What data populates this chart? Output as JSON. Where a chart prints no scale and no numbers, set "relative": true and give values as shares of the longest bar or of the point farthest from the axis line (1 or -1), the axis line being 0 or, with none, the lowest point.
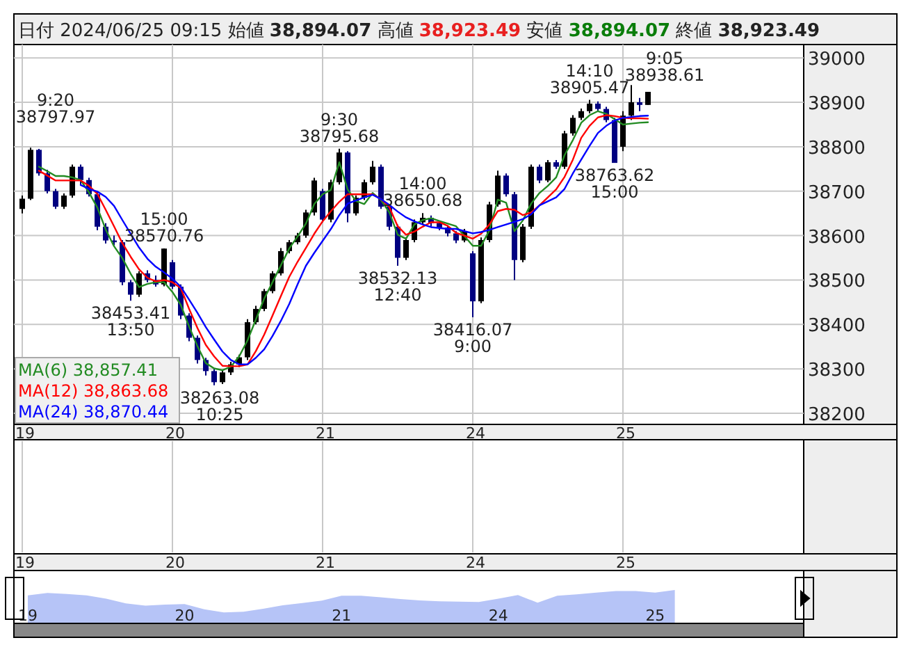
{
  "chart_data": [
    {
      "type": "candlestick",
      "title": "日付 2024/06/25 09:15 始値 **38,894.07** 高値 **38,923.49** 安値 **38,894.07** 終値 **38,923.49**",
      "categories": [
        "19",
        null,
        null,
        null,
        null,
        null,
        null,
        null,
        null,
        null,
        null,
        null,
        null,
        null,
        null,
        null,
        null,
        null,
        "20",
        null,
        null,
        null,
        null,
        null,
        null,
        null,
        null,
        null,
        null,
        null,
        null,
        null,
        null,
        null,
        null,
        null,
        "21",
        null,
        null,
        null,
        null,
        null,
        null,
        null,
        null,
        null,
        null,
        null,
        null,
        null,
        null,
        null,
        null,
        null,
        "24",
        null,
        null,
        null,
        null,
        null,
        null,
        null,
        null,
        null,
        null,
        null,
        null,
        null,
        null,
        null,
        null,
        null,
        "25",
        null,
        null,
        null
      ],
      "ohlc": [
        [
          38660,
          38690,
          38650,
          38683
        ],
        [
          38683,
          38797.97,
          38680,
          38793
        ],
        [
          38793,
          38795,
          38735,
          38740
        ],
        [
          38740,
          38748,
          38695,
          38700
        ],
        [
          38700,
          38705,
          38660,
          38665
        ],
        [
          38665,
          38695,
          38660,
          38690
        ],
        [
          38690,
          38760,
          38685,
          38755
        ],
        [
          38755,
          38760,
          38715,
          38725
        ],
        [
          38725,
          38730,
          38688,
          38693
        ],
        [
          38693,
          38698,
          38612,
          38620
        ],
        [
          38620,
          38628,
          38582,
          38589
        ],
        [
          38589,
          38600,
          38578,
          38585
        ],
        [
          38585,
          38590,
          38488,
          38495
        ],
        [
          38495,
          38500,
          38453.41,
          38467
        ],
        [
          38467,
          38520,
          38462,
          38515
        ],
        [
          38515,
          38522,
          38495,
          38500
        ],
        [
          38500,
          38510,
          38485,
          38490
        ],
        [
          38490,
          38570.76,
          38486,
          38570.76
        ],
        [
          38540,
          38545,
          38480,
          38485
        ],
        [
          38485,
          38490,
          38412,
          38420
        ],
        [
          38420,
          38425,
          38362,
          38370
        ],
        [
          38370,
          38375,
          38312,
          38320
        ],
        [
          38320,
          38325,
          38285,
          38295
        ],
        [
          38295,
          38300,
          38263.08,
          38270
        ],
        [
          38270,
          38298,
          38266,
          38292
        ],
        [
          38292,
          38316,
          38286,
          38310
        ],
        [
          38310,
          38332,
          38304,
          38326
        ],
        [
          38326,
          38412,
          38320,
          38405
        ],
        [
          38405,
          38442,
          38400,
          38435
        ],
        [
          38435,
          38480,
          38430,
          38475
        ],
        [
          38475,
          38520,
          38470,
          38515
        ],
        [
          38515,
          38572,
          38510,
          38565
        ],
        [
          38565,
          38590,
          38560,
          38585
        ],
        [
          38585,
          38606,
          38580,
          38600
        ],
        [
          38600,
          38658,
          38595,
          38652
        ],
        [
          38652,
          38730,
          38645,
          38724
        ],
        [
          38700,
          38705,
          38630,
          38636
        ],
        [
          38636,
          38726,
          38630,
          38720
        ],
        [
          38720,
          38795.68,
          38715,
          38787
        ],
        [
          38787,
          38790,
          38630,
          38650
        ],
        [
          38650,
          38690,
          38645,
          38685
        ],
        [
          38685,
          38726,
          38680,
          38720
        ],
        [
          38720,
          38768,
          38715,
          38755
        ],
        [
          38755,
          38760,
          38660,
          38665
        ],
        [
          38665,
          38670,
          38612,
          38620
        ],
        [
          38620,
          38625,
          38532.13,
          38550
        ],
        [
          38550,
          38596,
          38545,
          38590
        ],
        [
          38590,
          38636,
          38585,
          38630
        ],
        [
          38630,
          38650.68,
          38625,
          38640
        ],
        [
          38640,
          38645,
          38620,
          38628
        ],
        [
          38628,
          38632,
          38612,
          38618
        ],
        [
          38618,
          38622,
          38598,
          38605
        ],
        [
          38605,
          38610,
          38583,
          38589
        ],
        [
          38589,
          38615,
          38585,
          38610
        ],
        [
          38560,
          38565,
          38416.07,
          38452
        ],
        [
          38452,
          38596,
          38448,
          38590
        ],
        [
          38590,
          38676,
          38585,
          38670
        ],
        [
          38670,
          38746,
          38665,
          38735
        ],
        [
          38735,
          38740,
          38688,
          38693
        ],
        [
          38693,
          38698,
          38500,
          38545
        ],
        [
          38545,
          38626,
          38540,
          38620
        ],
        [
          38620,
          38760,
          38615,
          38755
        ],
        [
          38755,
          38760,
          38718,
          38724
        ],
        [
          38724,
          38770,
          38720,
          38765
        ],
        [
          38765,
          38770,
          38750,
          38755
        ],
        [
          38755,
          38836,
          38750,
          38830
        ],
        [
          38830,
          38871,
          38825,
          38865
        ],
        [
          38865,
          38886,
          38860,
          38880
        ],
        [
          38880,
          38905.47,
          38875,
          38897
        ],
        [
          38897,
          38902,
          38880,
          38885
        ],
        [
          38885,
          38890,
          38855,
          38860
        ],
        [
          38860,
          38865,
          38763.62,
          38763.62
        ],
        [
          38800,
          38880,
          38790,
          38870
        ],
        [
          38870,
          38938.61,
          38860,
          38900
        ],
        [
          38900,
          38910,
          38880,
          38894.07
        ],
        [
          38894.07,
          38923.49,
          38894.07,
          38923.49
        ]
      ],
      "colors": [
        "#000000",
        "#000000",
        "#000080",
        "#000080",
        "#000080",
        "#000000",
        "#000000",
        "#000080",
        "#000080",
        "#000080",
        "#000080",
        "#000080",
        "#000080",
        "#000080",
        "#000000",
        "#000080",
        "#000080",
        "#000000",
        "#000080",
        "#000080",
        "#000080",
        "#000080",
        "#000080",
        "#000080",
        "#000000",
        "#000000",
        "#000000",
        "#000000",
        "#000000",
        "#000000",
        "#000000",
        "#000000",
        "#000000",
        "#000000",
        "#000000",
        "#000000",
        "#000080",
        "#000000",
        "#000000",
        "#000080",
        "#000000",
        "#000000",
        "#000000",
        "#000080",
        "#000080",
        "#000080",
        "#000000",
        "#000000",
        "#000000",
        "#000080",
        "#000080",
        "#000080",
        "#000080",
        "#000000",
        "#000080",
        "#000000",
        "#000000",
        "#000000",
        "#000080",
        "#000080",
        "#000000",
        "#000000",
        "#000080",
        "#000000",
        "#000080",
        "#000000",
        "#000000",
        "#000000",
        "#000000",
        "#000080",
        "#000080",
        "#000080",
        "#000000",
        "#000000",
        "#000080",
        "#000000"
      ],
      "series": [
        {
          "name": "MA(6) 38,857.41",
          "type": "line",
          "color": "#228b22",
          "values": [
            null,
            null,
            38755,
            38745,
            38734,
            38734,
            38731,
            38725,
            38697,
            38663,
            38614,
            38576,
            38549,
            38514,
            38484,
            38491,
            38495,
            38495,
            38473,
            38444,
            38395,
            38351,
            38313,
            38301,
            38297,
            38305,
            38328,
            38364,
            38411,
            38458,
            38495,
            38533,
            38571,
            38598,
            38627,
            38671,
            38693,
            38703,
            38765,
            38704,
            38678,
            38671,
            38696,
            38680,
            38652,
            38602,
            38593,
            38625,
            38635,
            38639,
            38633,
            38627,
            38621,
            38599,
            38577,
            38577,
            38612,
            38681,
            38674,
            38610,
            38634,
            38672,
            38696,
            38712,
            38731,
            38781,
            38815,
            38854,
            38871,
            38880,
            38874,
            38862,
            38850,
            38852,
            38854,
            38855
          ]
        },
        {
          "name": "MA(12) 38,863.68",
          "type": "line",
          "color": "#ff0000",
          "values": [
            null,
            null,
            38746,
            38735,
            38724,
            38724,
            38724,
            38724,
            38712,
            38694,
            38658,
            38621,
            38583,
            38552,
            38524,
            38505,
            38497,
            38500,
            38495,
            38482,
            38435,
            38392,
            38354,
            38328,
            38307,
            38306,
            38306,
            38310,
            38340,
            38377,
            38420,
            38464,
            38507,
            38541,
            38572,
            38604,
            38632,
            38655,
            38676,
            38693,
            38693,
            38693,
            38693,
            38682,
            38664,
            38621,
            38602,
            38609,
            38620,
            38630,
            38630,
            38622,
            38606,
            38600,
            38593,
            38604,
            38625,
            38655,
            38660,
            38658,
            38646,
            38652,
            38668,
            38686,
            38704,
            38732,
            38771,
            38820,
            38847,
            38866,
            38871,
            38869,
            38865,
            38864,
            38864,
            38863
          ]
        },
        {
          "name": "MA(24) 38,870.44",
          "type": "line",
          "color": "#0000ff",
          "values": [
            null,
            null,
            null,
            null,
            null,
            null,
            null,
            38714,
            38705,
            38699,
            38687,
            38667,
            38635,
            38604,
            38573,
            38548,
            38530,
            38517,
            38503,
            38485,
            38456,
            38426,
            38394,
            38366,
            38339,
            38320,
            38310,
            38310,
            38325,
            38344,
            38374,
            38408,
            38446,
            38490,
            38532,
            38561,
            38588,
            38615,
            38646,
            38672,
            38679,
            38686,
            38692,
            38682,
            38669,
            38654,
            38641,
            38632,
            38625,
            38619,
            38617,
            38615,
            38615,
            38610,
            38605,
            38608,
            38613,
            38619,
            38625,
            38631,
            38637,
            38648,
            38668,
            38677,
            38686,
            38705,
            38740,
            38771,
            38802,
            38831,
            38847,
            38859,
            38865,
            38867,
            38869,
            38870
          ]
        }
      ],
      "annotations": [
        "9:20\n38797.97",
        {
          "text": "38453.41\n13:50",
          "y": 38453.41
        },
        {
          "text": "15:00\n38570.76",
          "y": 38570.76
        },
        {
          "text": "38263.08\n10:25",
          "y": 38263.08
        },
        {
          "text": "9:30\n38795.68",
          "y": 38795.68
        },
        {
          "text": "38532.13\n12:40",
          "y": 38532.13
        },
        {
          "text": "14:00\n38650.68",
          "y": 38650.68
        },
        {
          "text": "38416.07\n9:00",
          "y": 38416.07
        },
        {
          "text": "14:10\n38905.47",
          "y": 38905.47
        },
        {
          "text": "38763.62\n15:00",
          "y": 38763.62
        },
        "9:05\n38938.61"
      ],
      "ylim": [
        38175,
        39030
      ],
      "yticks": [
        38200,
        38300,
        38400,
        38500,
        38600,
        38700,
        38800,
        38900,
        39000
      ],
      "grid": true,
      "legend": "bottom left"
    },
    {
      "type": "area",
      "relative": true,
      "color": "#b6c4f7",
      "categories": [
        "19",
        null,
        null,
        null,
        null,
        null,
        null,
        null,
        "20",
        null,
        null,
        null,
        null,
        null,
        null,
        null,
        "21",
        null,
        null,
        null,
        null,
        null,
        null,
        null,
        "24",
        null,
        null,
        null,
        null,
        null,
        null,
        null,
        "25",
        null
      ],
      "values": [
        0.84,
        0.91,
        0.88,
        0.84,
        0.74,
        0.6,
        0.53,
        0.56,
        0.58,
        0.42,
        0.33,
        0.35,
        0.44,
        0.54,
        0.61,
        0.68,
        0.83,
        0.83,
        0.78,
        0.73,
        0.69,
        0.66,
        0.65,
        0.64,
        0.74,
        0.85,
        0.62,
        0.83,
        0.87,
        0.92,
        0.97,
        0.97,
        0.92,
        1
      ]
    }
  ]
}
